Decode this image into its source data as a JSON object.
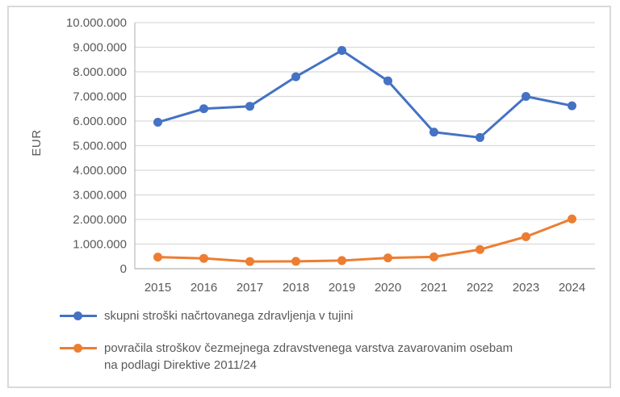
{
  "figure": {
    "background_color": "#FFFFFF",
    "border_color": "#D9D9D9"
  },
  "chart_data": {
    "type": "line",
    "title": "",
    "xlabel": "",
    "ylabel": "EUR",
    "categories": [
      "2015",
      "2016",
      "2017",
      "2018",
      "2019",
      "2020",
      "2021",
      "2022",
      "2023",
      "2024"
    ],
    "series": [
      {
        "name": "skupni stroški načrtovanega zdravljenja v tujini",
        "color": "#4472C4",
        "values": [
          5950000,
          6500000,
          6600000,
          7800000,
          8870000,
          7630000,
          5550000,
          5330000,
          7000000,
          6620000
        ]
      },
      {
        "name": "povračila stroškov čezmejnega zdravstvenega varstva zavarovanim osebam na podlagi Direktive 2011/24",
        "color": "#ED7D31",
        "values": [
          470000,
          420000,
          290000,
          300000,
          330000,
          440000,
          480000,
          780000,
          1300000,
          2020000
        ]
      }
    ],
    "ylim": [
      0,
      10000000
    ],
    "y_tick_step": 1000000,
    "y_tick_labels": [
      "0",
      "1.000.000",
      "2.000.000",
      "3.000.000",
      "4.000.000",
      "5.000.000",
      "6.000.000",
      "7.000.000",
      "8.000.000",
      "9.000.000",
      "10.000.000"
    ],
    "grid": true,
    "gridline_color": "#D9D9D9",
    "axis_line_color": "#BFBFBF",
    "tick_label_color": "#595959",
    "marker": "circle",
    "legend_position": "bottom-left"
  },
  "legend": {
    "items": [
      {
        "color": "#4472C4",
        "label_lines": [
          "skupni stroški načrtovanega zdravljenja v tujini"
        ]
      },
      {
        "color": "#ED7D31",
        "label_lines": [
          "povračila stroškov čezmejnega zdravstvenega varstva zavarovanim osebam",
          "na podlagi Direktive 2011/24"
        ]
      }
    ]
  }
}
